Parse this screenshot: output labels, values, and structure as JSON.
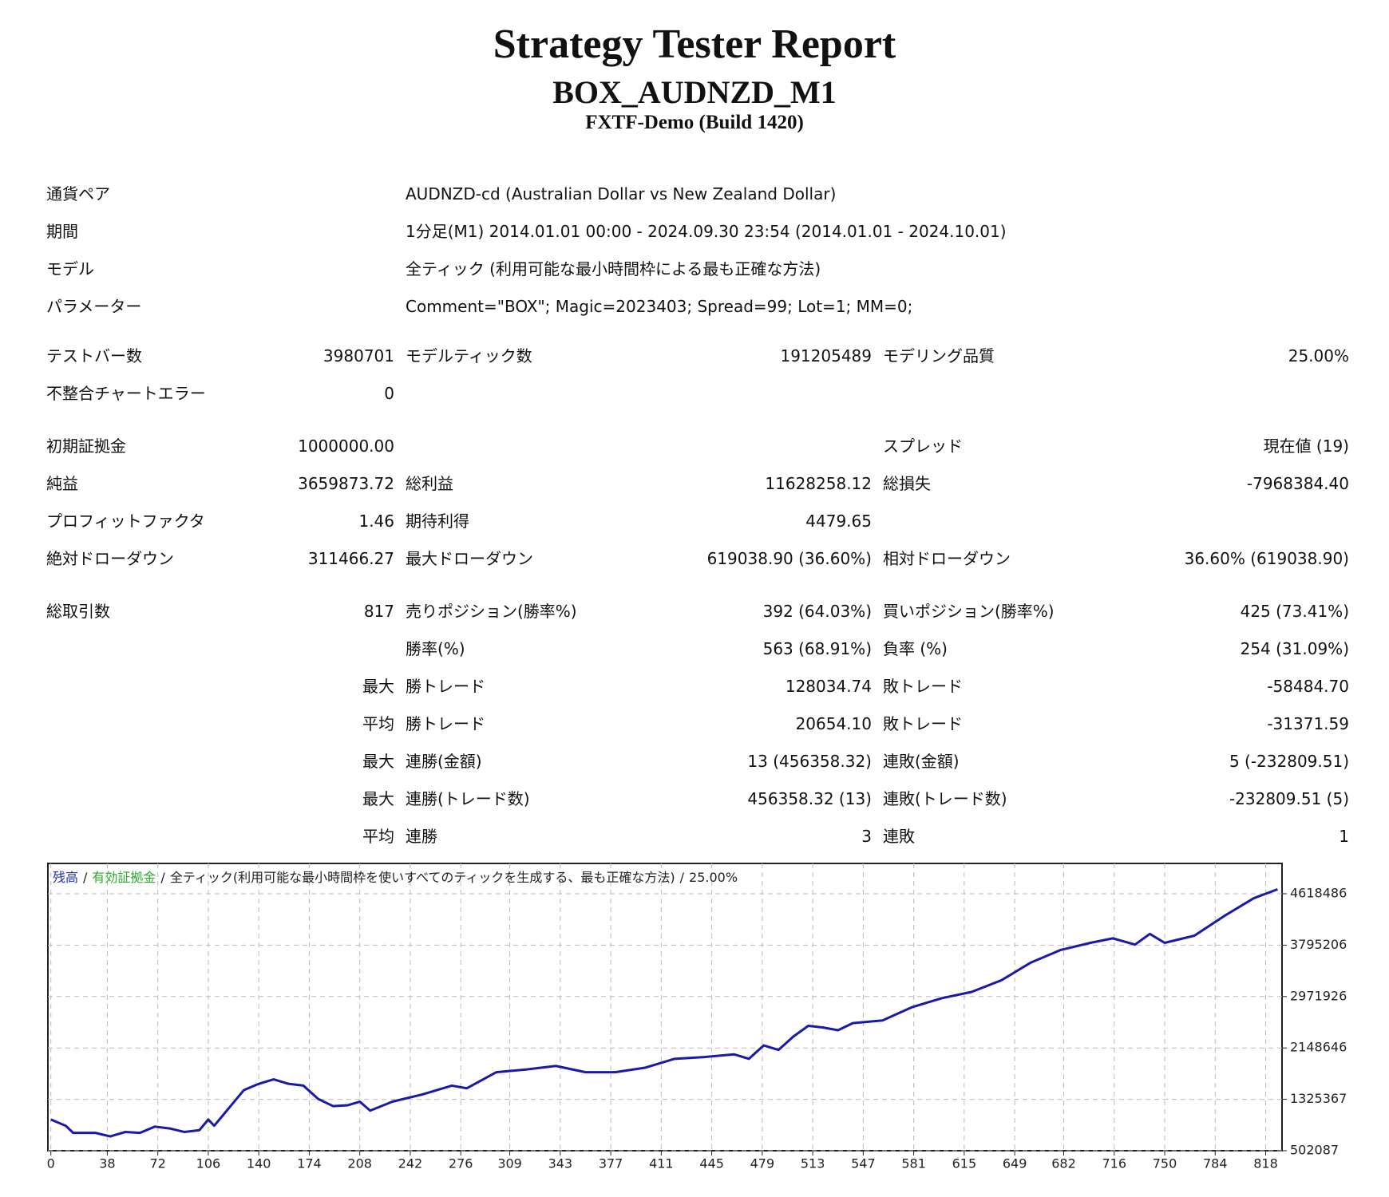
{
  "header": {
    "title": "Strategy Tester Report",
    "subtitle": "BOX_AUDNZD_M1",
    "server": "FXTF-Demo (Build 1420)"
  },
  "info": [
    {
      "label": "通貨ペア",
      "value": "AUDNZD-cd (Australian Dollar vs New Zealand Dollar)"
    },
    {
      "label": "期間",
      "value": "1分足(M1) 2014.01.01 00:00 - 2024.09.30 23:54 (2014.01.01 - 2024.10.01)"
    },
    {
      "label": "モデル",
      "value": "全ティック (利用可能な最小時間枠による最も正確な方法)"
    },
    {
      "label": "パラメーター",
      "value": "Comment=\"BOX\"; Magic=2023403; Spread=99; Lot=1; MM=0;"
    }
  ],
  "stats": [
    [
      {
        "label1": "テストバー数",
        "value1": "3980701",
        "label2": "モデルティック数",
        "value2": "191205489",
        "label3": "モデリング品質",
        "value3": "25.00%"
      },
      {
        "label1": "不整合チャートエラー",
        "value1": "0"
      }
    ],
    [
      {
        "label1": "初期証拠金",
        "value1": "1000000.00",
        "label3": "スプレッド",
        "value3": "現在値 (19)"
      },
      {
        "label1": "純益",
        "value1": "3659873.72",
        "label2": "総利益",
        "value2": "11628258.12",
        "label3": "総損失",
        "value3": "-7968384.40"
      },
      {
        "label1": "プロフィットファクタ",
        "value1": "1.46",
        "label2": "期待利得",
        "value2": "4479.65"
      },
      {
        "label1": "絶対ドローダウン",
        "value1": "311466.27",
        "label2": "最大ドローダウン",
        "value2": "619038.90 (36.60%)",
        "label3": "相対ドローダウン",
        "value3": "36.60% (619038.90)"
      }
    ],
    [
      {
        "label1": "総取引数",
        "value1": "817",
        "label2": "売りポジション(勝率%)",
        "value2": "392 (64.03%)",
        "label3": "買いポジション(勝率%)",
        "value3": "425 (73.41%)"
      },
      {
        "label2": "勝率(%)",
        "value2": "563 (68.91%)",
        "label3": "負率 (%)",
        "value3": "254 (31.09%)"
      },
      {
        "value1": "最大",
        "label2": "勝トレード",
        "value2": "128034.74",
        "label3": "敗トレード",
        "value3": "-58484.70"
      },
      {
        "value1": "平均",
        "label2": "勝トレード",
        "value2": "20654.10",
        "label3": "敗トレード",
        "value3": "-31371.59"
      },
      {
        "value1": "最大",
        "label2": "連勝(金額)",
        "value2": "13 (456358.32)",
        "label3": "連敗(金額)",
        "value3": "5 (-232809.51)"
      },
      {
        "value1": "最大",
        "label2": "連勝(トレード数)",
        "value2": "456358.32 (13)",
        "label3": "連敗(トレード数)",
        "value3": "-232809.51 (5)"
      },
      {
        "value1": "平均",
        "label2": "連勝",
        "value2": "3",
        "label3": "連敗",
        "value3": "1"
      }
    ]
  ],
  "chart_data": {
    "type": "line",
    "legend": [
      {
        "text": "残高",
        "color": "#1f2fb0"
      },
      {
        "text": "有効証拠金",
        "color": "#2ea82e"
      },
      {
        "text": "全ティック(利用可能な最小時間枠を使いすべてのティックを生成する、最も正確な方法)",
        "color": "#222222"
      },
      {
        "text": "25.00%",
        "color": "#222222"
      }
    ],
    "legend_separator": "/",
    "x": [
      0,
      10,
      15,
      30,
      40,
      50,
      60,
      70,
      80,
      90,
      100,
      106,
      110,
      120,
      130,
      140,
      150,
      160,
      170,
      180,
      190,
      200,
      208,
      215,
      230,
      250,
      270,
      280,
      300,
      320,
      340,
      360,
      380,
      400,
      420,
      440,
      460,
      470,
      480,
      490,
      500,
      510,
      520,
      530,
      540,
      560,
      580,
      600,
      620,
      640,
      660,
      680,
      700,
      715,
      730,
      740,
      750,
      770,
      790,
      810,
      826
    ],
    "series": [
      {
        "name": "残高",
        "color": "#1a1aa8",
        "values": [
          1002000,
          902000,
          788000,
          788000,
          731000,
          802000,
          788000,
          888000,
          859000,
          802000,
          831000,
          1002000,
          902000,
          1188000,
          1474000,
          1574000,
          1646000,
          1574000,
          1545000,
          1331000,
          1217000,
          1231000,
          1288000,
          1145000,
          1288000,
          1403000,
          1545000,
          1502000,
          1760000,
          1803000,
          1860000,
          1760000,
          1760000,
          1831000,
          1974000,
          2003000,
          2046000,
          1974000,
          2189000,
          2117000,
          2332000,
          2503000,
          2475000,
          2432000,
          2546000,
          2589000,
          2803000,
          2946000,
          3046000,
          3232000,
          3518000,
          3718000,
          3832000,
          3904000,
          3804000,
          3975000,
          3832000,
          3947000,
          4261000,
          4547000,
          4690000
        ]
      }
    ],
    "xlim": [
      -2,
      829
    ],
    "ylim": [
      502087,
      5104000
    ],
    "xticks": [
      0,
      38,
      72,
      106,
      140,
      174,
      208,
      242,
      276,
      309,
      343,
      377,
      411,
      445,
      479,
      513,
      547,
      581,
      615,
      649,
      682,
      716,
      750,
      784,
      818
    ],
    "yticks": [
      502087,
      1325367,
      2148646,
      2971926,
      3795206,
      4618486
    ],
    "grid": true
  }
}
